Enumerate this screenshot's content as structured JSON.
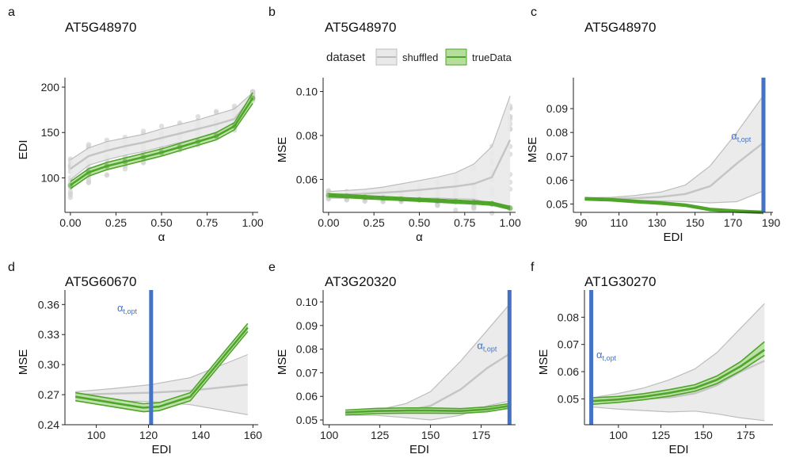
{
  "colors": {
    "true_line": "#4ea52a",
    "true_band": "#b5dd9c",
    "shuffled_line": "#bdbdbd",
    "shuffled_band": "#e9e9e9",
    "points": "#d3d3d3",
    "alpha_line": "#4472c4",
    "alpha_text": "#4472c4",
    "axis": "#222222"
  },
  "legend": {
    "title": "dataset",
    "items": [
      {
        "label": "shuffled",
        "color": "#bdbdbd",
        "fill": "#e9e9e9"
      },
      {
        "label": "trueData",
        "color": "#4ea52a",
        "fill": "#b5dd9c"
      }
    ]
  },
  "chart_data": [
    {
      "panel": "a",
      "type": "line",
      "title": "AT5G48970",
      "xlabel": "α",
      "ylabel": "EDI",
      "xlim": [
        -0.03,
        1.03
      ],
      "ylim": [
        62,
        200
      ],
      "xticks": [
        0,
        0.25,
        0.5,
        0.75,
        1.0
      ],
      "xtick_labels": [
        "0.00",
        "0.25",
        "0.50",
        "0.75",
        "1.00"
      ],
      "yticks": [
        100,
        150,
        200
      ],
      "ytick_labels": [
        "100",
        "150",
        "200"
      ],
      "scatter": {
        "x": [
          0,
          0.1,
          0.2,
          0.3,
          0.4,
          0.5,
          0.6,
          0.7,
          0.8,
          0.9,
          1.0
        ],
        "center": [
          100,
          115,
          122,
          128,
          133,
          140,
          146,
          152,
          159,
          166,
          190
        ],
        "spread": [
          22,
          22,
          20,
          19,
          19,
          18,
          17,
          16,
          15,
          14,
          6
        ]
      },
      "series": [
        {
          "name": "shuffled",
          "x": [
            0,
            0.1,
            0.2,
            0.3,
            0.4,
            0.5,
            0.6,
            0.7,
            0.8,
            0.9,
            1.0
          ],
          "y": [
            110,
            124,
            130,
            135,
            139,
            144,
            149,
            154,
            159,
            165,
            190
          ],
          "lower": [
            98,
            114,
            120,
            125,
            129,
            134,
            139,
            144,
            149,
            156,
            186
          ],
          "upper": [
            120,
            133,
            140,
            144,
            148,
            154,
            159,
            164,
            170,
            176,
            194
          ]
        },
        {
          "name": "trueData",
          "x": [
            0,
            0.1,
            0.2,
            0.3,
            0.4,
            0.5,
            0.6,
            0.7,
            0.8,
            0.9,
            1.0
          ],
          "y": [
            92,
            106,
            113,
            118,
            123,
            128,
            134,
            140,
            146,
            157,
            188
          ],
          "lower": [
            88,
            102,
            109,
            114,
            119,
            124,
            130,
            136,
            142,
            153,
            182
          ],
          "upper": [
            96,
            110,
            117,
            122,
            127,
            132,
            138,
            144,
            150,
            161,
            194
          ]
        }
      ]
    },
    {
      "panel": "b",
      "type": "line",
      "title": "AT5G48970",
      "xlabel": "α",
      "ylabel": "MSE",
      "xlim": [
        -0.03,
        1.03
      ],
      "ylim": [
        0.045,
        0.102
      ],
      "xticks": [
        0,
        0.25,
        0.5,
        0.75,
        1.0
      ],
      "xtick_labels": [
        "0.00",
        "0.25",
        "0.50",
        "0.75",
        "1.00"
      ],
      "yticks": [
        0.06,
        0.08,
        0.1
      ],
      "ytick_labels": [
        "0.06",
        "0.08",
        "0.10"
      ],
      "scatter": {
        "x": [
          0,
          0.1,
          0.2,
          0.3,
          0.4,
          0.5,
          0.6,
          0.7,
          0.8,
          0.9,
          1.0
        ],
        "center": [
          0.053,
          0.0525,
          0.052,
          0.0522,
          0.0525,
          0.053,
          0.0535,
          0.054,
          0.056,
          0.06,
          0.07
        ],
        "spread": [
          0.002,
          0.002,
          0.002,
          0.0025,
          0.003,
          0.004,
          0.006,
          0.008,
          0.01,
          0.016,
          0.027
        ]
      },
      "series": [
        {
          "name": "shuffled",
          "x": [
            0,
            0.1,
            0.2,
            0.3,
            0.4,
            0.5,
            0.6,
            0.7,
            0.8,
            0.9,
            1.0
          ],
          "y": [
            0.053,
            0.0532,
            0.0535,
            0.054,
            0.0545,
            0.0552,
            0.056,
            0.0568,
            0.058,
            0.061,
            0.078
          ],
          "lower": [
            0.0515,
            0.0515,
            0.0515,
            0.0515,
            0.0515,
            0.0515,
            0.0515,
            0.0512,
            0.051,
            0.049,
            0.048
          ],
          "upper": [
            0.0545,
            0.055,
            0.0555,
            0.0565,
            0.058,
            0.0595,
            0.061,
            0.063,
            0.067,
            0.075,
            0.098
          ]
        },
        {
          "name": "trueData",
          "x": [
            0,
            0.1,
            0.2,
            0.3,
            0.4,
            0.5,
            0.6,
            0.7,
            0.8,
            0.9,
            1.0
          ],
          "y": [
            0.0528,
            0.0524,
            0.0519,
            0.0515,
            0.0511,
            0.0507,
            0.0503,
            0.0499,
            0.0495,
            0.049,
            0.047
          ],
          "lower": [
            0.0521,
            0.0517,
            0.0512,
            0.0508,
            0.0504,
            0.05,
            0.0496,
            0.0492,
            0.0488,
            0.0483,
            0.0463
          ],
          "upper": [
            0.0535,
            0.0531,
            0.0526,
            0.0522,
            0.0518,
            0.0514,
            0.051,
            0.0506,
            0.0502,
            0.0497,
            0.0477
          ]
        }
      ]
    },
    {
      "panel": "c",
      "type": "line",
      "title": "AT5G48970",
      "xlabel": "EDI",
      "ylabel": "MSE",
      "xlim": [
        86,
        191
      ],
      "ylim": [
        0.0465,
        0.099
      ],
      "xticks": [
        90,
        110,
        130,
        150,
        170,
        190
      ],
      "xtick_labels": [
        "90",
        "110",
        "130",
        "150",
        "170",
        "190"
      ],
      "yticks": [
        0.05,
        0.06,
        0.07,
        0.08,
        0.09
      ],
      "ytick_labels": [
        "0.05",
        "0.06",
        "0.07",
        "0.08",
        "0.09"
      ],
      "vline": {
        "x": 186,
        "label_main": "α",
        "label_sub": "t,opt",
        "label_x": 169,
        "label_y": 0.077
      },
      "series": [
        {
          "name": "shuffled",
          "x": [
            92,
            106,
            118,
            132,
            145,
            158,
            172,
            186
          ],
          "y": [
            0.0522,
            0.0522,
            0.0524,
            0.053,
            0.0542,
            0.0575,
            0.067,
            0.0757
          ],
          "lower": [
            0.052,
            0.0518,
            0.0516,
            0.0513,
            0.051,
            0.0505,
            0.051,
            0.0555
          ],
          "upper": [
            0.0526,
            0.0528,
            0.0535,
            0.055,
            0.058,
            0.066,
            0.08,
            0.0955
          ]
        },
        {
          "name": "trueData",
          "x": [
            92,
            106,
            118,
            132,
            145,
            158,
            172,
            186
          ],
          "y": [
            0.0522,
            0.0518,
            0.0511,
            0.0504,
            0.0495,
            0.0477,
            0.047,
            0.0465
          ],
          "lower": [
            0.0517,
            0.0513,
            0.0506,
            0.0499,
            0.049,
            0.0472,
            0.0465,
            0.046
          ],
          "upper": [
            0.0527,
            0.0523,
            0.0516,
            0.0509,
            0.05,
            0.0482,
            0.0475,
            0.047
          ]
        }
      ]
    },
    {
      "panel": "d",
      "type": "line",
      "title": "AT5G60670",
      "xlabel": "EDI",
      "ylabel": "MSE",
      "xlim": [
        88,
        162
      ],
      "ylim": [
        0.24,
        0.365
      ],
      "xticks": [
        100,
        120,
        140,
        160
      ],
      "xtick_labels": [
        "100",
        "120",
        "140",
        "160"
      ],
      "yticks": [
        0.24,
        0.27,
        0.3,
        0.33,
        0.36
      ],
      "ytick_labels": [
        "0.24",
        "0.27",
        "0.30",
        "0.33",
        "0.36"
      ],
      "vline": {
        "x": 121,
        "label_main": "α",
        "label_sub": "t,opt",
        "label_x": 108,
        "label_y": 0.353
      },
      "series": [
        {
          "name": "shuffled",
          "x": [
            92,
            106,
            121,
            136,
            158
          ],
          "y": [
            0.27,
            0.271,
            0.272,
            0.274,
            0.28
          ],
          "lower": [
            0.266,
            0.264,
            0.263,
            0.26,
            0.25
          ],
          "upper": [
            0.273,
            0.276,
            0.28,
            0.287,
            0.31
          ]
        },
        {
          "name": "trueData",
          "x": [
            92,
            106,
            118,
            124,
            136,
            158
          ],
          "y": [
            0.268,
            0.262,
            0.257,
            0.258,
            0.268,
            0.337
          ],
          "lower": [
            0.264,
            0.258,
            0.253,
            0.254,
            0.264,
            0.333
          ],
          "upper": [
            0.272,
            0.266,
            0.261,
            0.262,
            0.272,
            0.341
          ]
        }
      ]
    },
    {
      "panel": "e",
      "type": "line",
      "title": "AT3G20320",
      "xlabel": "EDI",
      "ylabel": "MSE",
      "xlim": [
        97,
        192
      ],
      "ylim": [
        0.048,
        0.101
      ],
      "xticks": [
        100,
        125,
        150,
        175
      ],
      "xtick_labels": [
        "100",
        "125",
        "150",
        "175"
      ],
      "yticks": [
        0.05,
        0.06,
        0.07,
        0.08,
        0.09,
        0.1
      ],
      "ytick_labels": [
        "0.05",
        "0.06",
        "0.07",
        "0.08",
        "0.09",
        "0.10"
      ],
      "vline": {
        "x": 189,
        "label_main": "α",
        "label_sub": "t,opt",
        "label_x": 173,
        "label_y": 0.08
      },
      "series": [
        {
          "name": "shuffled",
          "x": [
            108,
            123,
            138,
            150,
            165,
            178,
            189
          ],
          "y": [
            0.0525,
            0.053,
            0.054,
            0.056,
            0.063,
            0.072,
            0.078
          ],
          "lower": [
            0.052,
            0.052,
            0.051,
            0.05,
            0.052,
            0.056,
            0.058
          ],
          "upper": [
            0.053,
            0.054,
            0.057,
            0.062,
            0.075,
            0.088,
            0.099
          ]
        },
        {
          "name": "trueData",
          "x": [
            108,
            123,
            138,
            150,
            165,
            178,
            189
          ],
          "y": [
            0.0532,
            0.0538,
            0.054,
            0.054,
            0.0538,
            0.0545,
            0.056
          ],
          "lower": [
            0.0522,
            0.0527,
            0.0529,
            0.0529,
            0.0528,
            0.0535,
            0.055
          ],
          "upper": [
            0.0542,
            0.0549,
            0.0551,
            0.0551,
            0.0548,
            0.0555,
            0.057
          ]
        }
      ]
    },
    {
      "panel": "f",
      "type": "line",
      "title": "AT1G30270",
      "xlabel": "EDI",
      "ylabel": "MSE",
      "xlim": [
        80,
        191
      ],
      "ylim": [
        0.0405,
        0.0865
      ],
      "xticks": [
        100,
        125,
        150,
        175
      ],
      "xtick_labels": [
        "100",
        "125",
        "150",
        "175"
      ],
      "yticks": [
        0.05,
        0.06,
        0.07,
        0.08
      ],
      "ytick_labels": [
        "0.05",
        "0.06",
        "0.07",
        "0.08"
      ],
      "vline": {
        "x": 84,
        "label_main": "α",
        "label_sub": "t,opt",
        "label_x": 87,
        "label_y": 0.065
      },
      "series": [
        {
          "name": "shuffled",
          "x": [
            85,
            100,
            115,
            130,
            145,
            158,
            172,
            186
          ],
          "y": [
            0.049,
            0.0495,
            0.05,
            0.0505,
            0.052,
            0.055,
            0.06,
            0.064
          ],
          "lower": [
            0.047,
            0.0462,
            0.0457,
            0.0452,
            0.0455,
            0.0445,
            0.043,
            0.042
          ],
          "upper": [
            0.0505,
            0.052,
            0.054,
            0.057,
            0.061,
            0.067,
            0.076,
            0.085
          ]
        },
        {
          "name": "trueData",
          "x": [
            85,
            100,
            115,
            130,
            145,
            158,
            172,
            186
          ],
          "y": [
            0.0492,
            0.0498,
            0.0508,
            0.0522,
            0.054,
            0.057,
            0.062,
            0.068
          ],
          "lower": [
            0.048,
            0.0487,
            0.0497,
            0.051,
            0.0528,
            0.0556,
            0.0603,
            0.066
          ],
          "upper": [
            0.0504,
            0.0509,
            0.0519,
            0.0534,
            0.0552,
            0.0584,
            0.0637,
            0.071
          ]
        }
      ]
    }
  ]
}
